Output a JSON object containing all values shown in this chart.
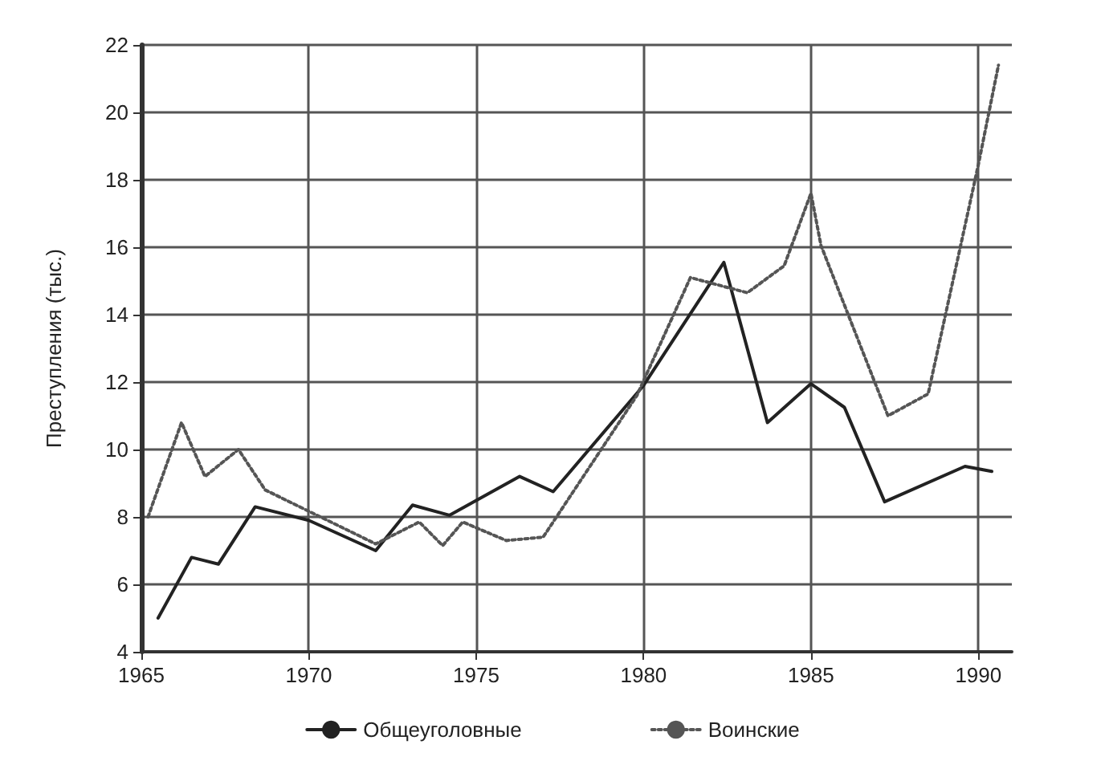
{
  "chart_data": {
    "type": "line",
    "ylabel": "Преступления (тыс.)",
    "xlim": [
      1965,
      1991
    ],
    "xticks": [
      1965,
      1970,
      1975,
      1980,
      1985,
      1990
    ],
    "ylim": [
      4,
      22
    ],
    "yticks": [
      4,
      6,
      8,
      10,
      12,
      14,
      16,
      18,
      20,
      22
    ],
    "grid": true,
    "legend": "bottom",
    "marker": "none",
    "series": [
      {
        "name": "Общеуголовные",
        "color": "#222222",
        "line_style": "solid",
        "x": [
          1965.5,
          1966.5,
          1967.3,
          1968.4,
          1970,
          1972,
          1973.1,
          1974.2,
          1976.3,
          1977.3,
          1980,
          1982.4,
          1983.7,
          1985,
          1986,
          1987.2,
          1989.6,
          1990.4
        ],
        "values": [
          5.0,
          6.8,
          6.6,
          8.3,
          7.9,
          7.0,
          8.35,
          8.05,
          9.2,
          8.75,
          11.9,
          15.55,
          10.8,
          11.95,
          11.25,
          8.45,
          9.5,
          9.35
        ]
      },
      {
        "name": "Воинские",
        "color": "#555555",
        "line_style": "dotted",
        "x": [
          1965.2,
          1966.2,
          1966.9,
          1967.9,
          1968.7,
          1972,
          1973.3,
          1974,
          1974.6,
          1975.9,
          1977,
          1979.8,
          1981.4,
          1983.1,
          1984.2,
          1985,
          1985.3,
          1987.3,
          1988.5,
          1990,
          1990.6
        ],
        "values": [
          8.0,
          10.8,
          9.2,
          10.0,
          8.8,
          7.2,
          7.85,
          7.15,
          7.85,
          7.3,
          7.4,
          11.6,
          15.1,
          14.65,
          15.45,
          17.6,
          16.05,
          11.0,
          11.65,
          18.45,
          21.4
        ]
      }
    ]
  }
}
